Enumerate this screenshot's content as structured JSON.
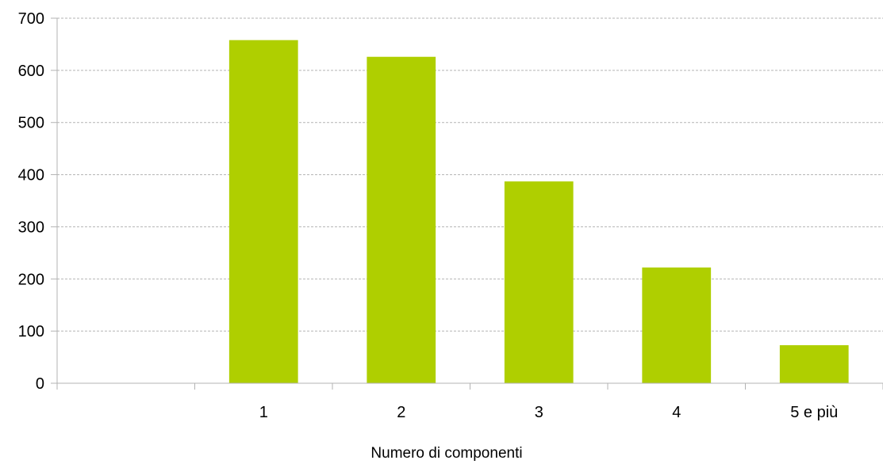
{
  "chart_data": {
    "type": "bar",
    "title": "",
    "xlabel": "Numero di componenti",
    "ylabel": "",
    "categories": [
      "",
      "1",
      "2",
      "3",
      "4",
      "5 e più"
    ],
    "values": [
      null,
      658,
      626,
      387,
      222,
      73
    ],
    "ylim": [
      0,
      700
    ],
    "yticks": [
      0,
      100,
      200,
      300,
      400,
      500,
      600,
      700
    ],
    "grid": true,
    "legend": "none",
    "bar_color": "#afcf00",
    "grid_color": "#b3b3b3"
  }
}
